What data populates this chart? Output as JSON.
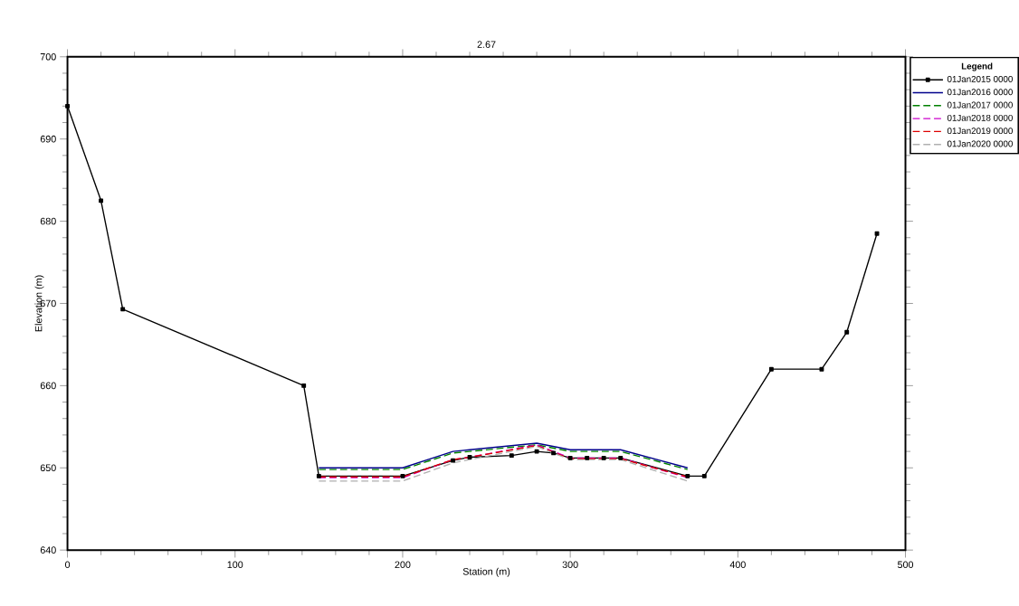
{
  "chart_data": {
    "type": "line",
    "title": "2.67",
    "xlabel": "Station (m)",
    "ylabel": "Elevation (m)",
    "legend_title": "Legend",
    "xlim": [
      0,
      500
    ],
    "ylim": [
      640,
      700
    ],
    "xticks": [
      0,
      100,
      200,
      300,
      400,
      500
    ],
    "yticks": [
      640,
      650,
      660,
      670,
      680,
      690,
      700
    ],
    "grid": false,
    "legend": "top right",
    "series": [
      {
        "name": "01Jan2015 0000",
        "color": "#000000",
        "line_style": "solid",
        "marker": "square",
        "x": [
          0,
          20,
          33,
          141,
          150,
          200,
          230,
          240,
          265,
          280,
          290,
          300,
          310,
          320,
          330,
          370,
          380,
          420,
          450,
          465,
          483
        ],
        "values": [
          694,
          682.5,
          669.3,
          660,
          649,
          649,
          650.9,
          651.3,
          651.5,
          652,
          651.8,
          651.2,
          651.2,
          651.2,
          651.2,
          649,
          649,
          662,
          662,
          666.5,
          678.5
        ]
      },
      {
        "name": "01Jan2016 0000",
        "color": "#00008b",
        "line_style": "solid",
        "marker": "none",
        "x": [
          150,
          200,
          230,
          240,
          280,
          300,
          330,
          370
        ],
        "values": [
          650,
          650,
          652,
          652.2,
          653,
          652.2,
          652.2,
          650
        ]
      },
      {
        "name": "01Jan2017 0000",
        "color": "#008000",
        "line_style": "dashed",
        "marker": "none",
        "x": [
          150,
          200,
          230,
          240,
          280,
          300,
          330,
          370
        ],
        "values": [
          649.8,
          649.8,
          651.8,
          652,
          652.8,
          652,
          652,
          649.8
        ]
      },
      {
        "name": "01Jan2018 0000",
        "color": "#cc00cc",
        "line_style": "dashed",
        "marker": "none",
        "x": [
          150,
          200,
          230,
          240,
          280,
          300,
          330,
          370
        ],
        "values": [
          648.8,
          648.8,
          651,
          651.3,
          652.8,
          651.2,
          651.2,
          648.8
        ]
      },
      {
        "name": "01Jan2019 0000",
        "color": "#dd0000",
        "line_style": "dashed",
        "marker": "none",
        "x": [
          150,
          200,
          230,
          240,
          280,
          300,
          330,
          370
        ],
        "values": [
          648.9,
          648.9,
          651,
          651.3,
          652.7,
          651.1,
          651.1,
          648.9
        ]
      },
      {
        "name": "01Jan2020 0000",
        "color": "#b0b0b0",
        "line_style": "dashed",
        "marker": "none",
        "x": [
          150,
          200,
          230,
          280,
          300,
          330,
          370
        ],
        "values": [
          648.4,
          648.4,
          650.6,
          652.6,
          651,
          651,
          648.4
        ]
      }
    ]
  }
}
